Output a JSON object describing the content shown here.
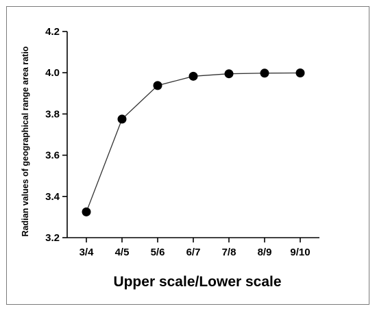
{
  "chart_data": {
    "type": "line",
    "title": "",
    "xlabel": "Upper scale/Lower scale",
    "ylabel": "Radian values of geographical range area ratio",
    "categories": [
      "3/4",
      "4/5",
      "5/6",
      "6/7",
      "7/8",
      "8/9",
      "9/10"
    ],
    "series": [
      {
        "values": [
          3.325,
          3.775,
          3.938,
          3.983,
          3.995,
          3.998,
          3.999
        ]
      }
    ],
    "ylim": [
      3.2,
      4.2
    ],
    "yticks": [
      "3.2",
      "3.4",
      "3.6",
      "3.8",
      "4.0",
      "4.2"
    ],
    "grid": false,
    "legend": "none",
    "colors": {
      "line": "#333333",
      "marker": "#000000",
      "axis": "#000000"
    }
  }
}
